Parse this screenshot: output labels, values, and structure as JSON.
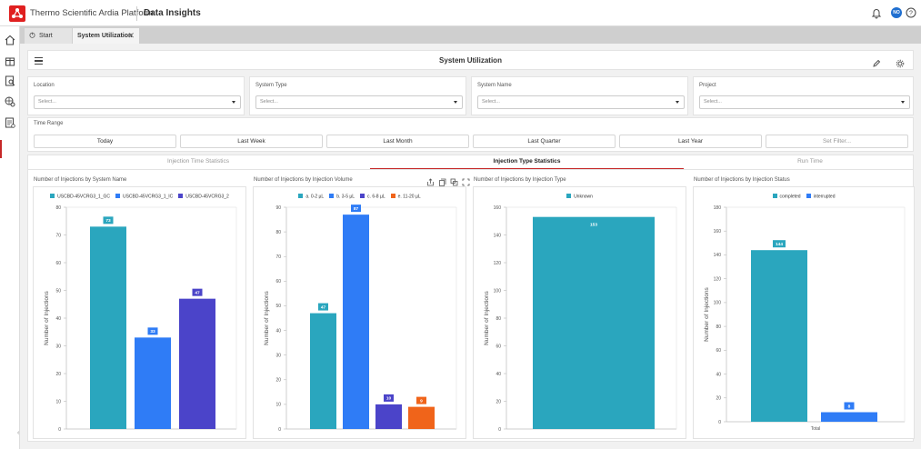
{
  "topbar": {
    "brand": "Thermo Scientific Ardia Platform",
    "app_title": "Data Insights",
    "avatar_initials": "NO"
  },
  "tabs": [
    {
      "label": "Start"
    },
    {
      "label": "System Utilization",
      "active": true
    }
  ],
  "header": {
    "title": "System Utilization"
  },
  "filters": [
    {
      "label": "Location",
      "placeholder": "Select..."
    },
    {
      "label": "System Type",
      "placeholder": "Select..."
    },
    {
      "label": "System Name",
      "placeholder": "Select..."
    },
    {
      "label": "Project",
      "placeholder": "Select..."
    }
  ],
  "time_range": {
    "label": "Time Range",
    "buttons": [
      "Today",
      "Last Week",
      "Last Month",
      "Last Quarter",
      "Last Year",
      "Set Filter..."
    ]
  },
  "subtabs": [
    {
      "label": "Injection Time Statistics",
      "active": false
    },
    {
      "label": "Injection Type Statistics",
      "active": true
    },
    {
      "label": "Run Time",
      "active": false
    }
  ],
  "colors": {
    "teal": "#2aa6be",
    "blue": "#2f7cf6",
    "indigo": "#4b44c9",
    "orange": "#f0641a",
    "active_tab": "#c62828"
  },
  "chart_data": [
    {
      "type": "bar",
      "title": "Number of Injections by System Name",
      "ylabel": "Number of Injections",
      "ylim": [
        0,
        80
      ],
      "yticks": [
        0,
        10,
        20,
        30,
        40,
        50,
        60,
        70,
        80
      ],
      "grid": false,
      "legend": "top",
      "series": [
        {
          "name": "USCBD-45VCRG3_1_GC",
          "value": 73,
          "color": "#2aa6be"
        },
        {
          "name": "USCBD-45VCRG3_1_IC",
          "value": 33,
          "color": "#2f7cf6"
        },
        {
          "name": "USCBD-45VCRG3_2",
          "value": 47,
          "color": "#4b44c9"
        }
      ],
      "xlabel": ""
    },
    {
      "type": "bar",
      "title": "Number of Injections by Injection Volume",
      "ylabel": "Number of Injections",
      "ylim": [
        0,
        90
      ],
      "yticks": [
        0,
        10,
        20,
        30,
        40,
        50,
        60,
        70,
        80,
        90
      ],
      "grid": false,
      "legend": "top",
      "series": [
        {
          "name": "a. 0-2 µL",
          "value": 47,
          "color": "#2aa6be"
        },
        {
          "name": "b. 3-5 µL",
          "value": 87,
          "color": "#2f7cf6"
        },
        {
          "name": "c. 6-8 µL",
          "value": 10,
          "color": "#4b44c9"
        },
        {
          "name": "e. 11-20 µL",
          "value": 9,
          "color": "#f0641a"
        }
      ],
      "xlabel": ""
    },
    {
      "type": "bar",
      "title": "Number of Injections by Injection Type",
      "ylabel": "Number of Injections",
      "ylim": [
        0,
        160
      ],
      "yticks": [
        0,
        20,
        40,
        60,
        80,
        100,
        120,
        140,
        160
      ],
      "grid": false,
      "legend": "top",
      "series": [
        {
          "name": "Unknown",
          "value": 153,
          "color": "#2aa6be"
        }
      ],
      "xlabel": ""
    },
    {
      "type": "bar",
      "title": "Number of Injections by Injection Status",
      "ylabel": "Number of Injections",
      "ylim": [
        0,
        180
      ],
      "yticks": [
        0,
        20,
        40,
        60,
        80,
        100,
        120,
        140,
        160,
        180
      ],
      "grid": false,
      "legend": "top",
      "categories": [
        "Total"
      ],
      "series": [
        {
          "name": "completed",
          "value": 144,
          "color": "#2aa6be"
        },
        {
          "name": "interrupted",
          "value": 8,
          "color": "#2f7cf6"
        }
      ],
      "xlabel": ""
    }
  ]
}
